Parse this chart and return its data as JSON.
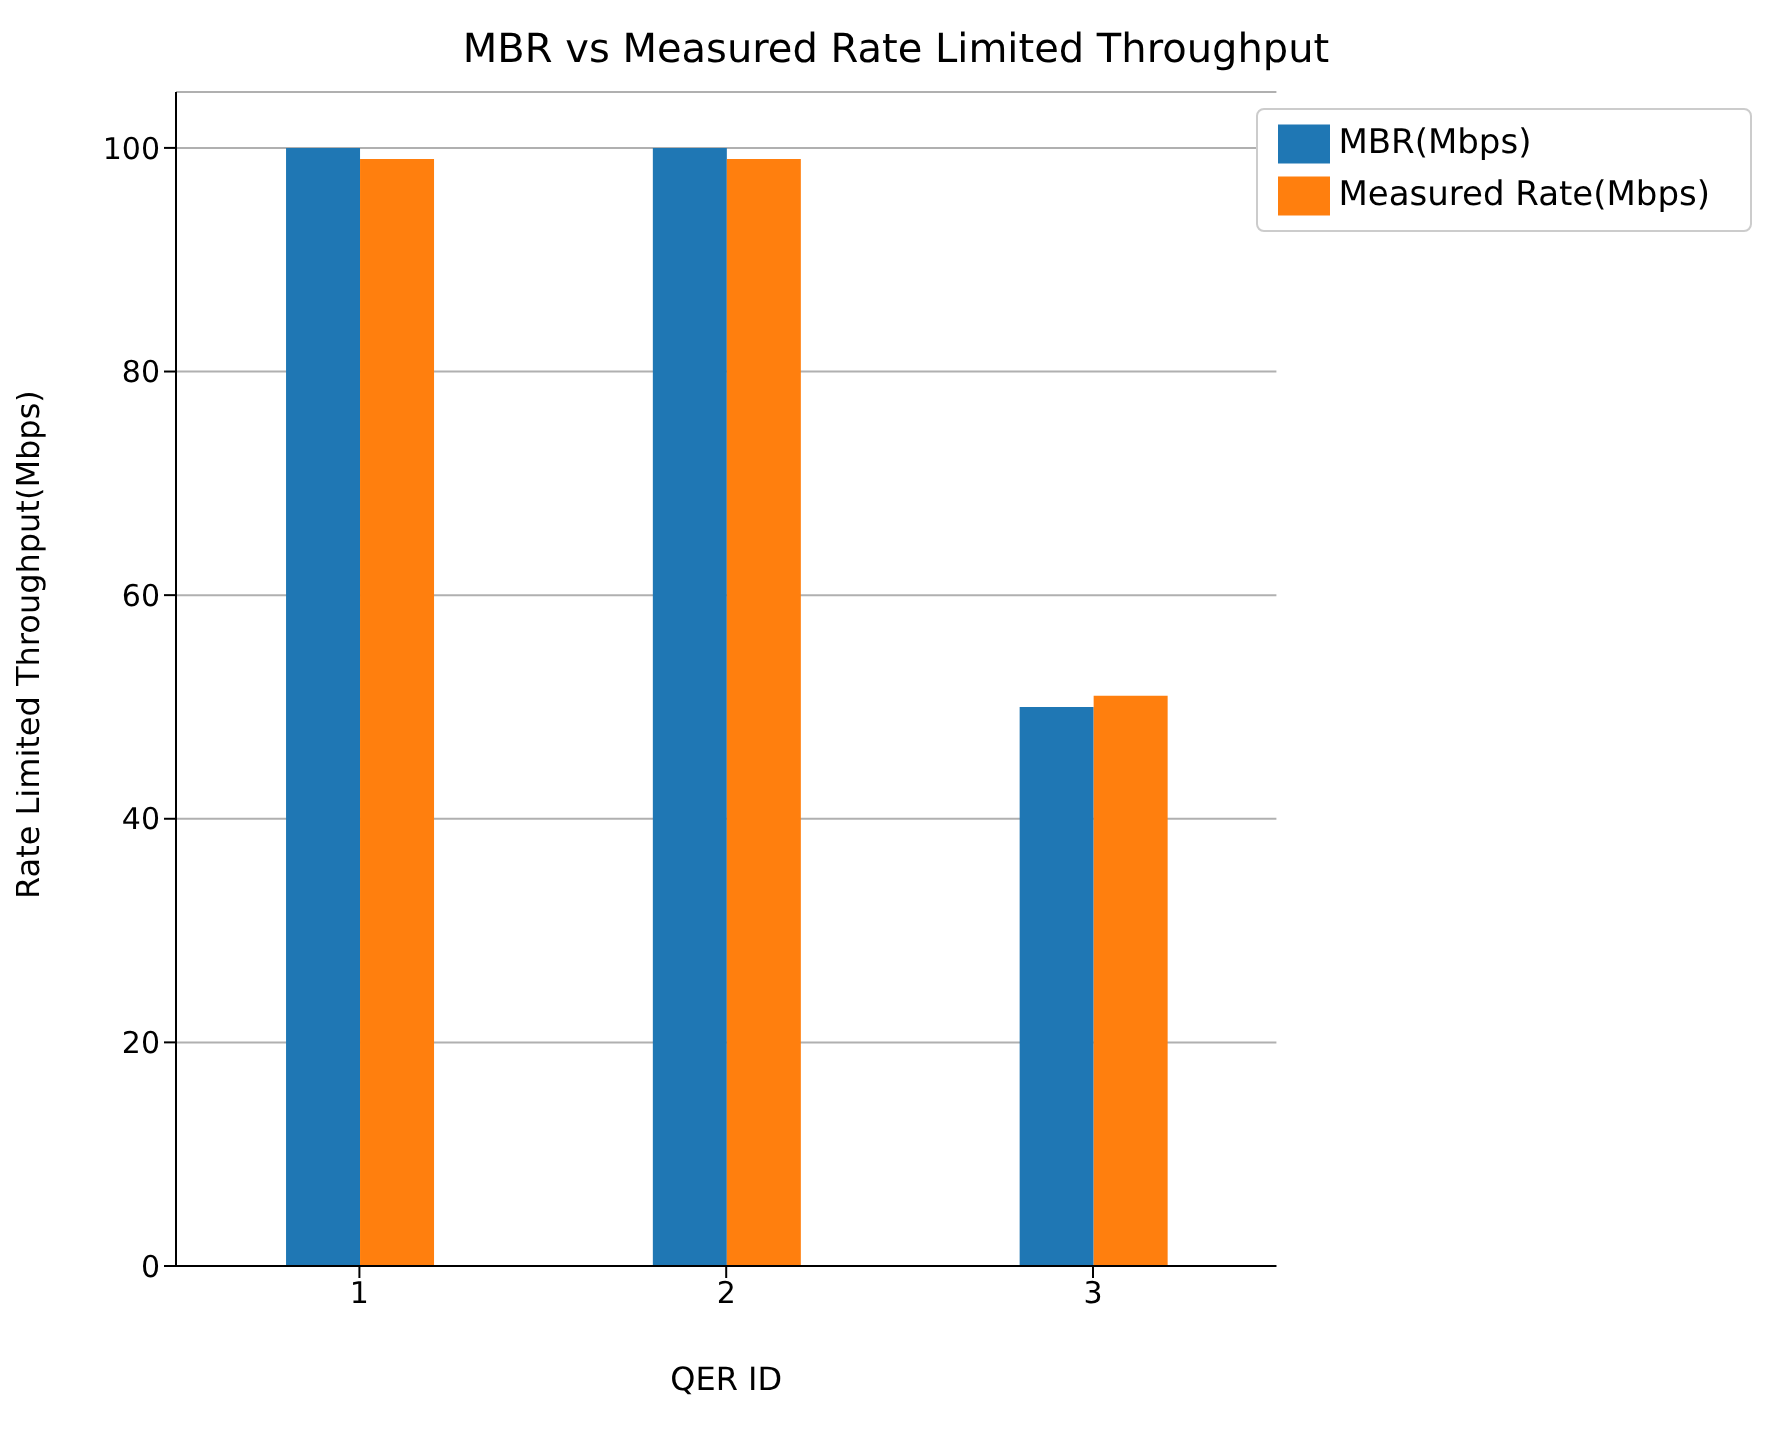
{
  "chart_data": {
    "type": "bar",
    "title": "MBR vs Measured Rate Limited Throughput",
    "xlabel": "QER ID",
    "ylabel": "Rate Limited Throughput(Mbps)",
    "categories": [
      "1",
      "2",
      "3"
    ],
    "series": [
      {
        "name": "MBR(Mbps)",
        "color": "#1f77b4",
        "values": [
          100,
          100,
          50
        ]
      },
      {
        "name": "Measured Rate(Mbps)",
        "color": "#ff7f0e",
        "values": [
          99,
          99,
          51
        ]
      }
    ],
    "ylim": [
      0,
      105
    ],
    "yticks": [
      0,
      20,
      40,
      60,
      80,
      100
    ],
    "grid": "y",
    "legend": "top right"
  }
}
